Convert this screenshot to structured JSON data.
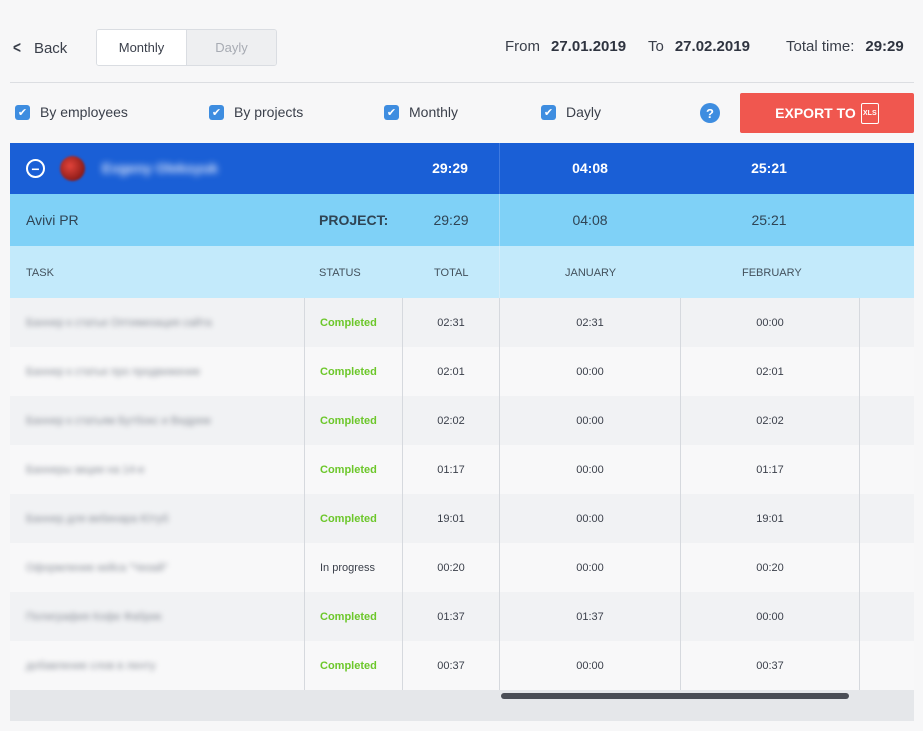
{
  "header": {
    "back_label": "Back",
    "view_toggle": {
      "monthly": "Monthly",
      "dayly": "Dayly"
    },
    "from_label": "From",
    "from_value": "27.01.2019",
    "to_label": "To",
    "to_value": "27.02.2019",
    "total_label": "Total time:",
    "total_value": "29:29"
  },
  "filters": {
    "by_employees": "By employees",
    "by_projects": "By projects",
    "monthly": "Monthly",
    "dayly": "Dayly",
    "help": "?",
    "export_label": "EXPORT TO",
    "export_icon_text": "XLS"
  },
  "employee": {
    "name": "Evgeny Oleksyuk",
    "total": "29:29",
    "january": "04:08",
    "february": "25:21"
  },
  "project": {
    "name": "Avivi PR",
    "label": "PROJECT:",
    "total": "29:29",
    "january": "04:08",
    "february": "25:21"
  },
  "columns": {
    "task": "TASK",
    "status": "STATUS",
    "total": "TOTAL",
    "january": "JANUARY",
    "february": "FEBRUARY"
  },
  "rows": [
    {
      "task": "Баннер к статье Оптимизация сайта",
      "status": "Completed",
      "total": "02:31",
      "january": "02:31",
      "february": "00:00"
    },
    {
      "task": "Баннер к статье про продвижение",
      "status": "Completed",
      "total": "02:01",
      "january": "00:00",
      "february": "02:01"
    },
    {
      "task": "Баннер к статьям Бутбокс и Видрем",
      "status": "Completed",
      "total": "02:02",
      "january": "00:00",
      "february": "02:02"
    },
    {
      "task": "Баннеры акции на 14-е",
      "status": "Completed",
      "total": "01:17",
      "january": "00:00",
      "february": "01:17"
    },
    {
      "task": "Баннер для вебинара Ютуб",
      "status": "Completed",
      "total": "19:01",
      "january": "00:00",
      "february": "19:01"
    },
    {
      "task": "Оформление кейса \"Чизай\"",
      "status": "In progress",
      "total": "00:20",
      "january": "00:00",
      "february": "00:20"
    },
    {
      "task": "Полиграфия Кофе Фабрик",
      "status": "Completed",
      "total": "01:37",
      "january": "01:37",
      "february": "00:00"
    },
    {
      "task": "добавление слов в ленту",
      "status": "Completed",
      "total": "00:37",
      "january": "00:00",
      "february": "00:37"
    }
  ],
  "colors": {
    "employee_bar": "#1a5fd6",
    "project_bar": "#7fd1f7",
    "header_bar": "#c3eafb",
    "export_button": "#f0574f",
    "checkbox": "#3e8de0",
    "completed": "#6cc72a"
  }
}
